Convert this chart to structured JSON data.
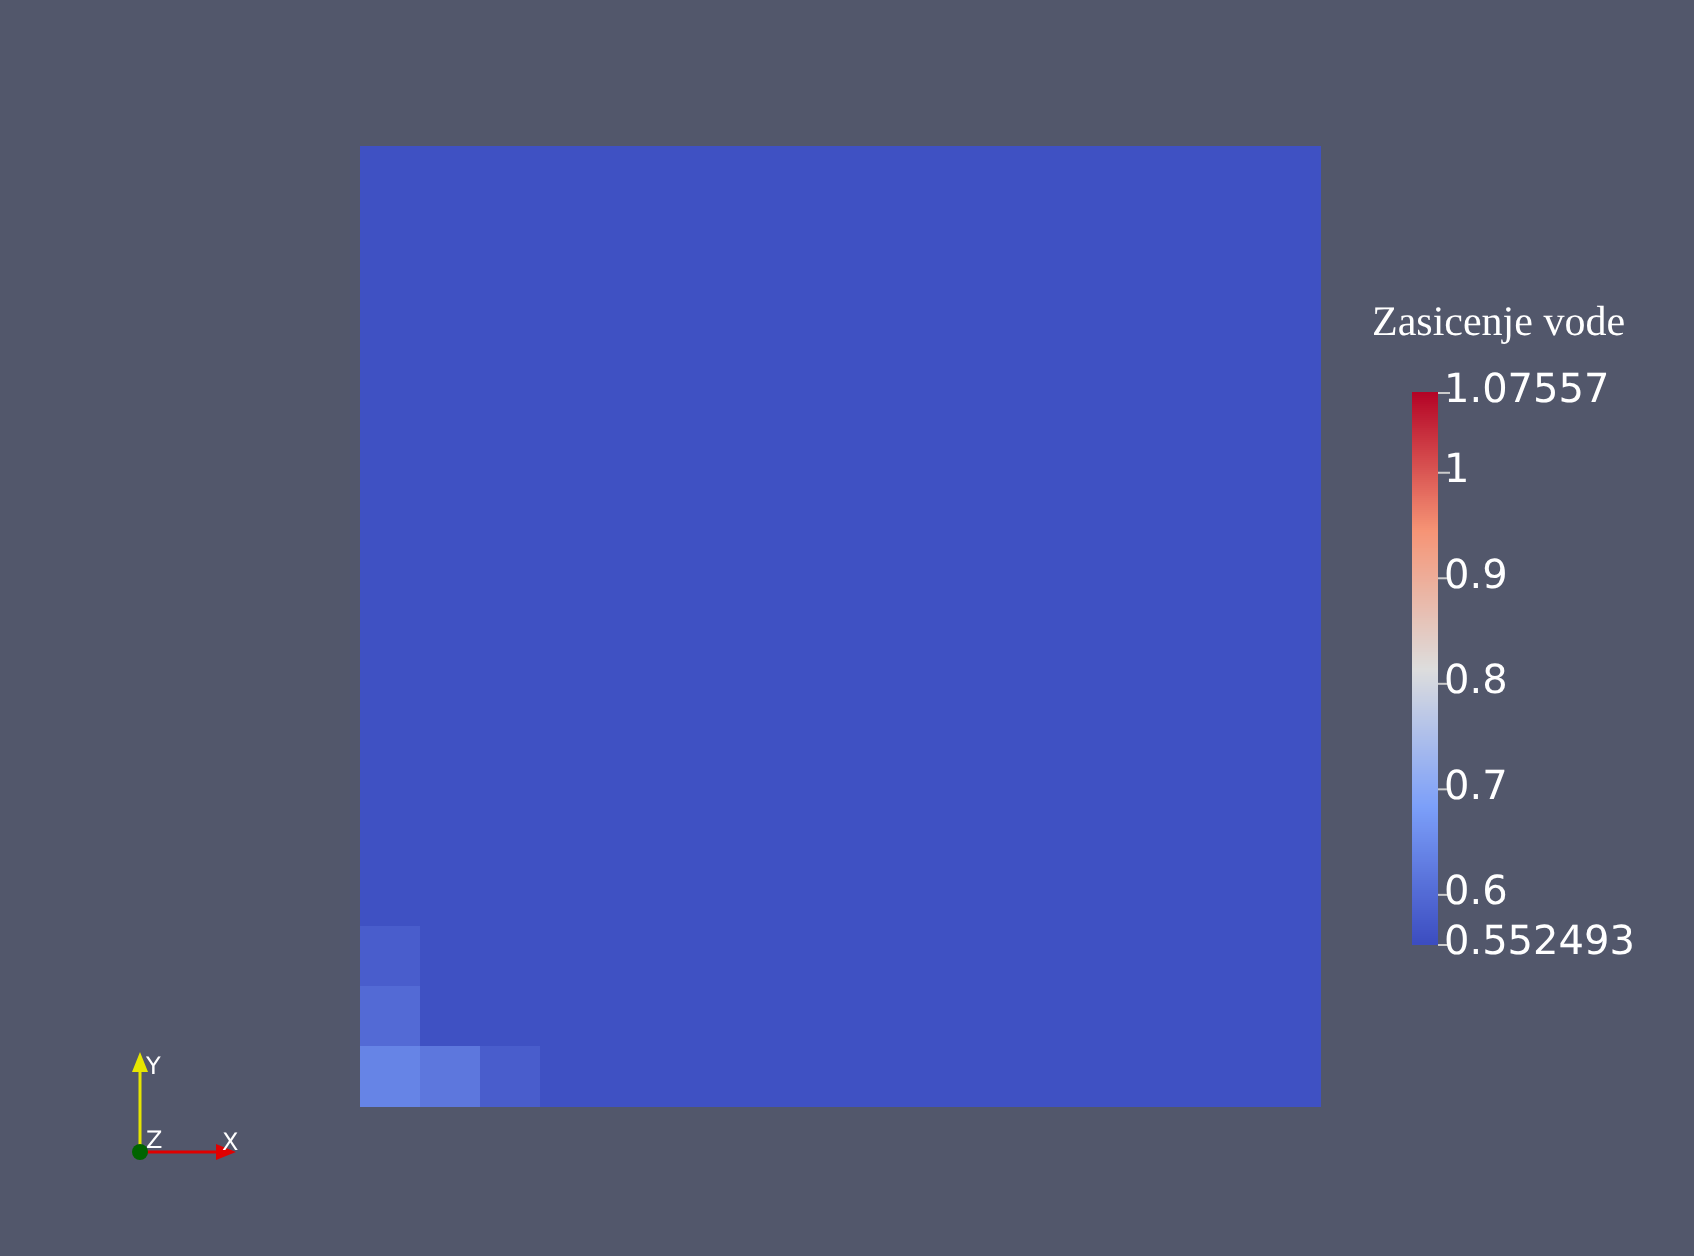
{
  "chart_data": {
    "type": "heatmap",
    "clabel": "Zasicenje vode",
    "categories": [
      null,
      null,
      null,
      null,
      null,
      null,
      null,
      null,
      null,
      null,
      null,
      null,
      null,
      null,
      null,
      null
    ],
    "y_categories": [
      null,
      null,
      null,
      null,
      null,
      null,
      null,
      null,
      null,
      null,
      null,
      null,
      null,
      null,
      null,
      null
    ],
    "cells": [
      [
        0.56,
        0.56,
        0.56,
        0.56,
        0.56,
        0.56,
        0.56,
        0.56,
        0.56,
        0.56,
        0.56,
        0.56,
        0.56,
        0.56,
        0.56,
        0.56
      ],
      [
        0.56,
        0.56,
        0.56,
        0.56,
        0.56,
        0.56,
        0.56,
        0.56,
        0.56,
        0.56,
        0.56,
        0.56,
        0.56,
        0.56,
        0.56,
        0.56
      ],
      [
        0.56,
        0.56,
        0.56,
        0.56,
        0.56,
        0.56,
        0.56,
        0.56,
        0.56,
        0.56,
        0.56,
        0.56,
        0.56,
        0.56,
        0.56,
        0.56
      ],
      [
        0.56,
        0.56,
        0.56,
        0.56,
        0.56,
        0.56,
        0.56,
        0.56,
        0.56,
        0.56,
        0.56,
        0.56,
        0.56,
        0.56,
        0.56,
        0.56
      ],
      [
        0.56,
        0.56,
        0.56,
        0.56,
        0.56,
        0.56,
        0.56,
        0.56,
        0.56,
        0.56,
        0.56,
        0.56,
        0.56,
        0.56,
        0.56,
        0.56
      ],
      [
        0.56,
        0.56,
        0.56,
        0.56,
        0.56,
        0.56,
        0.56,
        0.56,
        0.56,
        0.56,
        0.56,
        0.56,
        0.56,
        0.56,
        0.56,
        0.56
      ],
      [
        0.56,
        0.56,
        0.56,
        0.56,
        0.56,
        0.56,
        0.56,
        0.56,
        0.56,
        0.56,
        0.56,
        0.56,
        0.56,
        0.56,
        0.56,
        0.56
      ],
      [
        0.56,
        0.56,
        0.56,
        0.56,
        0.56,
        0.56,
        0.56,
        0.56,
        0.56,
        0.56,
        0.56,
        0.56,
        0.56,
        0.56,
        0.56,
        0.56
      ],
      [
        0.56,
        0.56,
        0.56,
        0.56,
        0.56,
        0.56,
        0.56,
        0.56,
        0.56,
        0.56,
        0.56,
        0.56,
        0.56,
        0.56,
        0.56,
        0.56
      ],
      [
        0.56,
        0.56,
        0.56,
        0.56,
        0.56,
        0.56,
        0.56,
        0.56,
        0.56,
        0.56,
        0.56,
        0.56,
        0.56,
        0.56,
        0.56,
        0.56
      ],
      [
        0.56,
        0.56,
        0.56,
        0.56,
        0.56,
        0.56,
        0.56,
        0.56,
        0.56,
        0.56,
        0.56,
        0.56,
        0.56,
        0.56,
        0.56,
        0.56
      ],
      [
        0.56,
        0.56,
        0.56,
        0.56,
        0.56,
        0.56,
        0.56,
        0.56,
        0.56,
        0.56,
        0.56,
        0.56,
        0.56,
        0.56,
        0.56,
        0.56
      ],
      [
        0.56,
        0.56,
        0.56,
        0.56,
        0.56,
        0.56,
        0.56,
        0.56,
        0.56,
        0.56,
        0.56,
        0.56,
        0.56,
        0.56,
        0.56,
        0.56
      ],
      [
        0.58,
        0.56,
        0.56,
        0.56,
        0.56,
        0.56,
        0.56,
        0.56,
        0.56,
        0.56,
        0.56,
        0.56,
        0.56,
        0.56,
        0.56,
        0.56
      ],
      [
        0.6,
        0.56,
        0.56,
        0.56,
        0.56,
        0.56,
        0.56,
        0.56,
        0.56,
        0.56,
        0.56,
        0.56,
        0.56,
        0.56,
        0.56,
        0.56
      ],
      [
        0.64,
        0.62,
        0.58,
        0.56,
        0.56,
        0.56,
        0.56,
        0.56,
        0.56,
        0.56,
        0.56,
        0.56,
        0.56,
        0.56,
        0.56,
        0.56
      ]
    ],
    "clim": [
      0.552493,
      1.07557
    ],
    "cticks": [
      0.552493,
      0.6,
      0.7,
      0.8,
      0.9,
      1,
      1.07557
    ],
    "annotations": [
      "Y",
      "Z",
      "X"
    ]
  }
}
